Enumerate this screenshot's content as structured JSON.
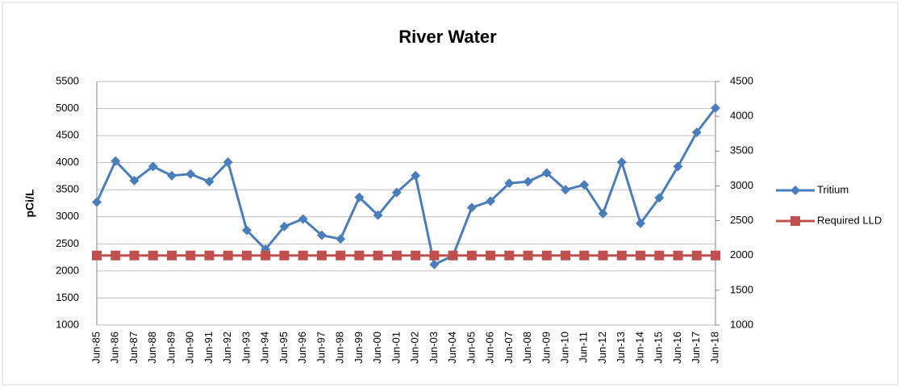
{
  "chart_data": {
    "type": "line",
    "title": "River Water",
    "y_label": "pCi/L",
    "categories": [
      "Jun-85",
      "Jun-86",
      "Jun-87",
      "Jun-88",
      "Jun-89",
      "Jun-90",
      "Jun-91",
      "Jun-92",
      "Jun-93",
      "Jun-94",
      "Jun-95",
      "Jun-96",
      "Jun-97",
      "Jun-98",
      "Jun-99",
      "Jun-00",
      "Jun-01",
      "Jun-02",
      "Jun-03",
      "Jun-04",
      "Jun-05",
      "Jun-06",
      "Jun-07",
      "Jun-08",
      "Jun-09",
      "Jun-10",
      "Jun-11",
      "Jun-12",
      "Jun-13",
      "Jun-14",
      "Jun-15",
      "Jun-16",
      "Jun-17",
      "Jun-18"
    ],
    "series": [
      {
        "name": "Tritium",
        "color": "#4a7ebb",
        "marker": "diamond",
        "values": [
          3270,
          4030,
          3670,
          3930,
          3760,
          3790,
          3650,
          4010,
          2750,
          2400,
          2820,
          2960,
          2660,
          2590,
          3360,
          3030,
          3450,
          3760,
          2120,
          2280,
          3170,
          3290,
          3620,
          3650,
          3810,
          3500,
          3590,
          3060,
          4010,
          2880,
          3350,
          3930,
          4560,
          5010
        ]
      },
      {
        "name": "Required LLD",
        "color": "#c0504d",
        "marker": "square",
        "axis": "y2",
        "values": [
          2000,
          2000,
          2000,
          2000,
          2000,
          2000,
          2000,
          2000,
          2000,
          2000,
          2000,
          2000,
          2000,
          2000,
          2000,
          2000,
          2000,
          2000,
          2000,
          2000,
          2000,
          2000,
          2000,
          2000,
          2000,
          2000,
          2000,
          2000,
          2000,
          2000,
          2000,
          2000,
          2000,
          2000
        ]
      }
    ],
    "ylim": [
      1000,
      5500
    ],
    "yticks": [
      1000,
      1500,
      2000,
      2500,
      3000,
      3500,
      4000,
      4500,
      5000,
      5500
    ],
    "y2lim": [
      1000,
      4500
    ],
    "y2ticks": [
      1000,
      1500,
      2000,
      2500,
      3000,
      3500,
      4000,
      4500
    ],
    "grid": true,
    "legend": "right"
  }
}
